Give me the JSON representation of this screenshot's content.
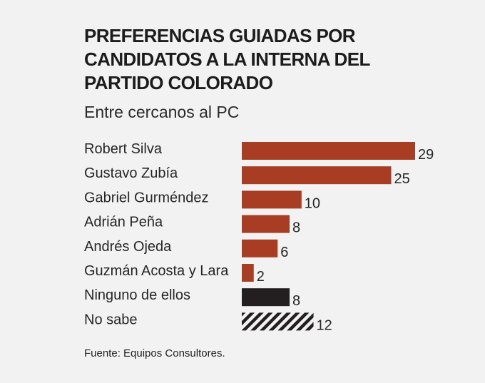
{
  "header": {
    "title": "PREFERENCIAS GUIADAS POR CANDIDATOS A LA INTERNA DEL PARTIDO COLORADO",
    "subtitle": "Entre cercanos al PC"
  },
  "footer": {
    "source": "Fuente: Equipos Consultores."
  },
  "colors": {
    "candidate_bar": "#a93d24",
    "none_bar": "#231f20",
    "unknown_bar_hatch": "#231f20"
  },
  "chart_data": {
    "type": "bar",
    "orientation": "horizontal",
    "title": "PREFERENCIAS GUIADAS POR CANDIDATOS A LA INTERNA DEL PARTIDO COLORADO",
    "subtitle": "Entre cercanos al PC",
    "categories": [
      "Robert Silva",
      "Gustavo Zubía",
      "Gabriel Gurméndez",
      "Adrián Peña",
      "Andrés Ojeda",
      "Guzmán Acosta y Lara",
      "Ninguno de ellos",
      "No sabe"
    ],
    "values": [
      29,
      25,
      10,
      8,
      6,
      2,
      8,
      12
    ],
    "bar_styles": [
      "candidate",
      "candidate",
      "candidate",
      "candidate",
      "candidate",
      "candidate",
      "none",
      "hatched"
    ],
    "xlim": [
      0,
      29
    ],
    "grid": false,
    "legend": "none",
    "data_labels": true
  }
}
